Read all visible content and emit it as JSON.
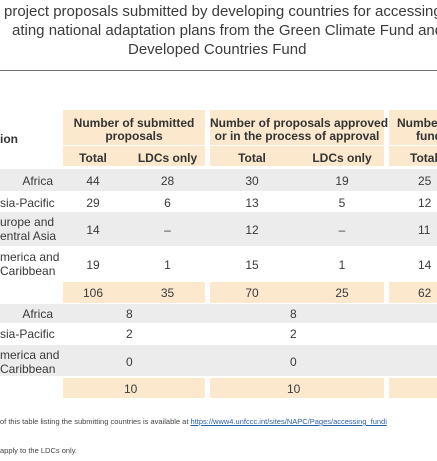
{
  "title": {
    "line1": "project proposals submitted by developing countries for accessing",
    "line2": "ating national adaptation plans from the Green Climate Fund and",
    "line3": "Developed Countries Fund"
  },
  "table": {
    "row_header": "ion",
    "col_groups": [
      {
        "label_l1": "Number of submitted",
        "label_l2": "proposals"
      },
      {
        "label_l1": "Number of proposals approved",
        "label_l2": "or in the process of approval"
      },
      {
        "label_l1": "Numbe",
        "label_l2": "fund"
      }
    ],
    "sub_headers": {
      "total": "Total",
      "ldcs": "LDCs only",
      "total3": "Total"
    },
    "rows_a": [
      {
        "region": "Africa",
        "sub_total": "44",
        "sub_ldc": "28",
        "app_total": "30",
        "app_ldc": "19",
        "fund_total": "25"
      },
      {
        "region": "sia-Pacific",
        "sub_total": "29",
        "sub_ldc": "6",
        "app_total": "13",
        "app_ldc": "5",
        "fund_total": "12"
      },
      {
        "region_l1": "urope and",
        "region_l2": "entral Asia",
        "sub_total": "14",
        "sub_ldc": "–",
        "app_total": "12",
        "app_ldc": "–",
        "fund_total": "11"
      },
      {
        "region_l1": "merica and",
        "region_l2": "Caribbean",
        "sub_total": "19",
        "sub_ldc": "1",
        "app_total": "15",
        "app_ldc": "1",
        "fund_total": "14"
      }
    ],
    "total_a": {
      "sub_total": "106",
      "sub_ldc": "35",
      "app_total": "70",
      "app_ldc": "25",
      "fund_total": "62"
    },
    "rows_b": [
      {
        "region": "Africa",
        "sub": "8",
        "app": "8"
      },
      {
        "region": "sia-Pacific",
        "sub": "2",
        "app": "2"
      },
      {
        "region_l1": "merica and",
        "region_l2": "Caribbean",
        "sub": "0",
        "app": "0"
      }
    ],
    "total_b": {
      "sub": "10",
      "app": "10"
    }
  },
  "notes": {
    "note1_text": "of this table listing the submitting countries is available at ",
    "note1_link": "https://www4.unfccc.int/sites/NAPC/Pages/accessing_fundi",
    "note2_text": "apply to the LDCs only."
  }
}
